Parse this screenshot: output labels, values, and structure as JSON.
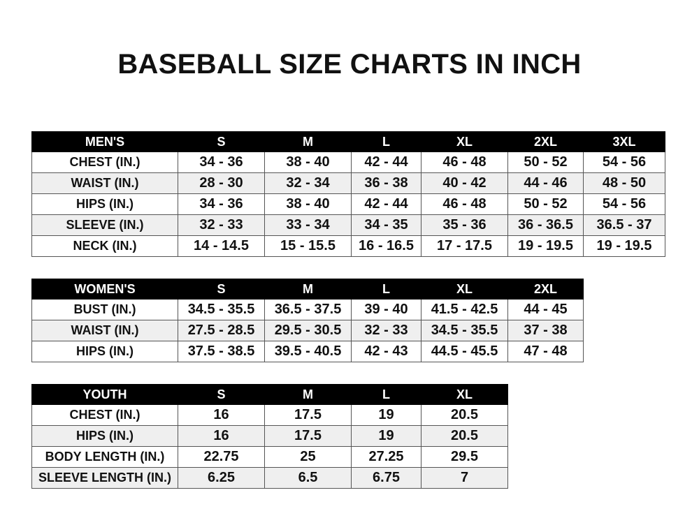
{
  "title": "BASEBALL SIZE CHARTS IN INCH",
  "colors": {
    "header_bg": "#000000",
    "header_text": "#ffffff",
    "alt_row": "#efefef",
    "border": "#555555"
  },
  "tables": {
    "men": {
      "header": [
        "MEN'S",
        "S",
        "M",
        "L",
        "XL",
        "2XL",
        "3XL"
      ],
      "rows": [
        [
          "CHEST (IN.)",
          "34 - 36",
          "38 - 40",
          "42 - 44",
          "46 - 48",
          "50 - 52",
          "54 - 56"
        ],
        [
          "WAIST (IN.)",
          "28 - 30",
          "32 - 34",
          "36 - 38",
          "40 - 42",
          "44 - 46",
          "48 - 50"
        ],
        [
          "HIPS (IN.)",
          "34 - 36",
          "38 - 40",
          "42 - 44",
          "46 - 48",
          "50 - 52",
          "54 - 56"
        ],
        [
          "SLEEVE (IN.)",
          "32 - 33",
          "33 - 34",
          "34 - 35",
          "35 - 36",
          "36 - 36.5",
          "36.5 - 37"
        ],
        [
          "NECK (IN.)",
          "14 - 14.5",
          "15 - 15.5",
          "16 - 16.5",
          "17 - 17.5",
          "19 - 19.5",
          "19 - 19.5"
        ]
      ]
    },
    "women": {
      "header": [
        "WOMEN'S",
        "S",
        "M",
        "L",
        "XL",
        "2XL"
      ],
      "rows": [
        [
          "BUST (IN.)",
          "34.5 - 35.5",
          "36.5 - 37.5",
          "39 - 40",
          "41.5 - 42.5",
          "44 - 45"
        ],
        [
          "WAIST (IN.)",
          "27.5 - 28.5",
          "29.5 - 30.5",
          "32 - 33",
          "34.5 - 35.5",
          "37 - 38"
        ],
        [
          "HIPS (IN.)",
          "37.5 - 38.5",
          "39.5 - 40.5",
          "42 - 43",
          "44.5 - 45.5",
          "47 - 48"
        ]
      ]
    },
    "youth": {
      "header": [
        "YOUTH",
        "S",
        "M",
        "L",
        "XL"
      ],
      "rows": [
        [
          "CHEST (IN.)",
          "16",
          "17.5",
          "19",
          "20.5"
        ],
        [
          "HIPS (IN.)",
          "16",
          "17.5",
          "19",
          "20.5"
        ],
        [
          "BODY LENGTH (IN.)",
          "22.75",
          "25",
          "27.25",
          "29.5"
        ],
        [
          "SLEEVE LENGTH (IN.)",
          "6.25",
          "6.5",
          "6.75",
          "7"
        ]
      ]
    }
  }
}
